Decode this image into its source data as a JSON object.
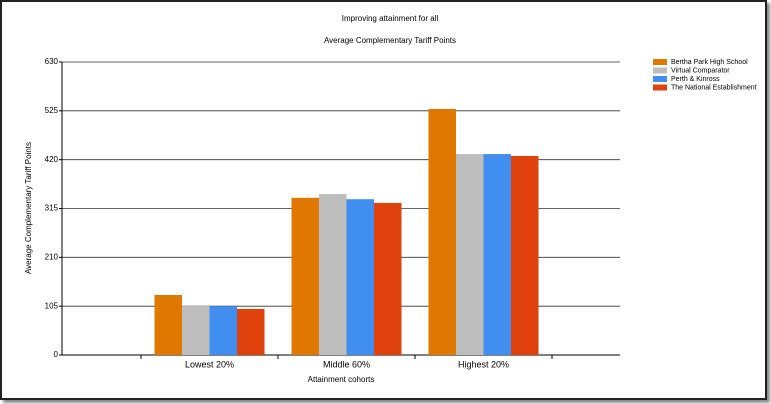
{
  "chart_data": {
    "type": "bar",
    "title": "Improving attainment for all",
    "subtitle": "Average Complementary Tariff Points",
    "y_label": "Average Complementary Tariff Points",
    "x_label": "Attainment cohorts",
    "categories": [
      "Lowest 20%",
      "Middle 60%",
      "Highest 20%"
    ],
    "series": [
      {
        "name": "Bertha Park High School",
        "color": "#e07800",
        "values": [
          129,
          338,
          529
        ]
      },
      {
        "name": "Virtual Comparator",
        "color": "#bdbdbd",
        "values": [
          107,
          346,
          432
        ]
      },
      {
        "name": "Perth & Kinross",
        "color": "#3f8ef0",
        "values": [
          105,
          335,
          432
        ]
      },
      {
        "name": "The National Establishment",
        "color": "#e0420e",
        "values": [
          99,
          327,
          428
        ]
      }
    ],
    "ylim": [
      0,
      630
    ],
    "yticks": [
      0,
      105,
      210,
      315,
      420,
      525,
      630
    ],
    "grid": true,
    "legend": "top-right"
  }
}
